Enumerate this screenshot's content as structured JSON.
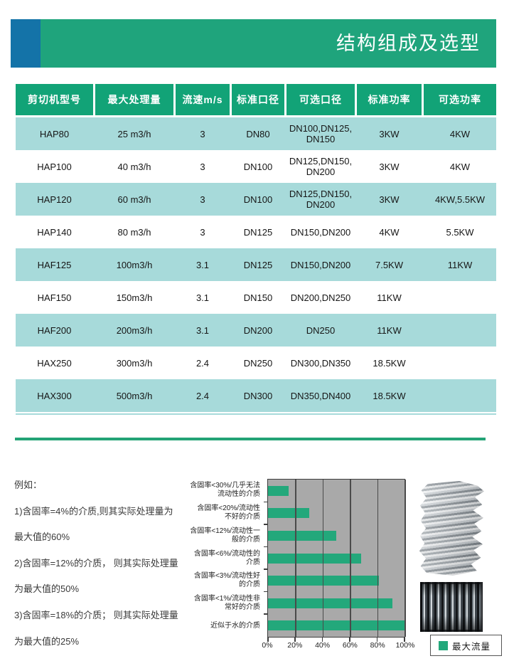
{
  "page": {
    "title": "结构组成及选型"
  },
  "table": {
    "columns": [
      "剪切机型号",
      "最大处理量",
      "流速m/s",
      "标准口径",
      "可选口径",
      "标准功率",
      "可选功率"
    ],
    "rows": [
      [
        "HAP80",
        "25 m3/h",
        "3",
        "DN80",
        "DN100,DN125, DN150",
        "3KW",
        "4KW"
      ],
      [
        "HAP100",
        "40 m3/h",
        "3",
        "DN100",
        "DN125,DN150, DN200",
        "3KW",
        "4KW"
      ],
      [
        "HAP120",
        "60 m3/h",
        "3",
        "DN100",
        "DN125,DN150, DN200",
        "3KW",
        "4KW,5.5KW"
      ],
      [
        "HAP140",
        "80 m3/h",
        "3",
        "DN125",
        "DN150,DN200",
        "4KW",
        "5.5KW"
      ],
      [
        "HAF125",
        "100m3/h",
        "3.1",
        "DN125",
        "DN150,DN200",
        "7.5KW",
        "11KW"
      ],
      [
        "HAF150",
        "150m3/h",
        "3.1",
        "DN150",
        "DN200,DN250",
        "11KW",
        ""
      ],
      [
        "HAF200",
        "200m3/h",
        "3.1",
        "DN200",
        "DN250",
        "11KW",
        ""
      ],
      [
        "HAX250",
        "300m3/h",
        "2.4",
        "DN250",
        "DN300,DN350",
        "18.5KW",
        ""
      ],
      [
        "HAX300",
        "500m3/h",
        "2.4",
        "DN300",
        "DN350,DN400",
        "18.5KW",
        ""
      ]
    ]
  },
  "notes": {
    "lines": [
      "例如：",
      "1)含固率=4%的介质,则其实际处理量为",
      "最大值的60%",
      "2)含固率=12%的介质， 则其实际处理量",
      "为最大值的50%",
      "3)含固率=18%的介质； 则其实际处理量",
      "为最大值的25%"
    ]
  },
  "chart_data": {
    "type": "bar",
    "orientation": "horizontal",
    "title": "",
    "categories": [
      "含固率<30%/几乎无法流动性的介质",
      "含固率<20%/流动性不好的介质",
      "含固率<12%/流动性一般的介质",
      "含固率<6%/流动性的介质",
      "含固率<3%/流动性好的介质",
      "含固率<1%/流动性非常好的介质",
      "近似于水的介质"
    ],
    "categories_display": [
      [
        "含固率<30%/几乎无法",
        "流动性的介质"
      ],
      [
        "含固率<20%/流动性",
        "不好的介质"
      ],
      [
        "含固率<12%/流动性一",
        "般的介质"
      ],
      [
        "含固率<6%/流动性的",
        "介质"
      ],
      [
        "含固率<3%/流动性好",
        "的介质"
      ],
      [
        "含固率<1%/流动性非",
        "常好的介质"
      ],
      [
        "近似于水的介质",
        ""
      ]
    ],
    "values": [
      15,
      30,
      50,
      68,
      81,
      91,
      100
    ],
    "x_ticks": [
      "0%",
      "20%",
      "40%",
      "60%",
      "80%",
      "100%"
    ],
    "xlim": [
      0,
      100
    ],
    "grid": true,
    "plot_bg": "#a9a9a9",
    "legend": {
      "label": "最大流量",
      "color": "#23a87b",
      "position": "bottom-right"
    }
  },
  "colors": {
    "banner_green": "#1fa47c",
    "banner_blue": "#1473a8",
    "header_green": "#12a377",
    "row_teal": "#a7dada",
    "bar_green": "#23a87b",
    "divider_green": "#23a376",
    "plot_bg": "#a9a9a9"
  }
}
